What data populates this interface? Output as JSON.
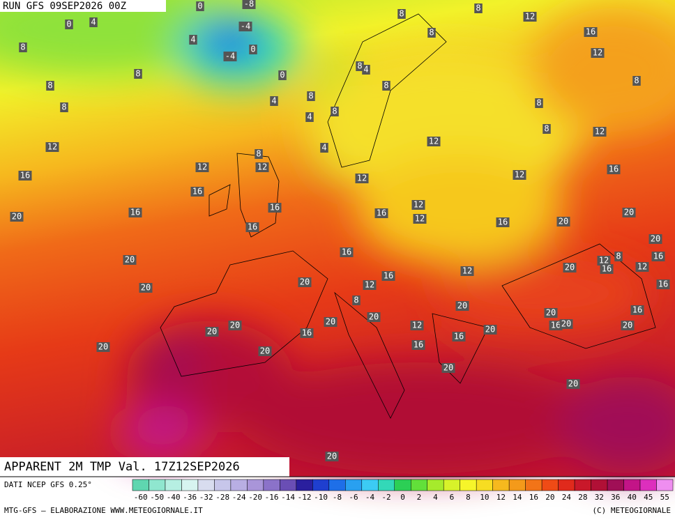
{
  "header": "RUN GFS 09SEP2026 00Z",
  "title": "APPARENT 2M TMP Val. 17Z12SEP2026",
  "source": "DATI NCEP GFS 0.25°",
  "credit_left": "MTG-GFS — ELABORAZIONE WWW.METEOGIORNALE.IT",
  "credit_right": "(C) METEOGIORNALE",
  "colorbar": {
    "labels": [
      "-60",
      "-50",
      "-40",
      "-36",
      "-32",
      "-28",
      "-24",
      "-20",
      "-16",
      "-14",
      "-12",
      "-10",
      "-8",
      "-6",
      "-4",
      "-2",
      "0",
      "2",
      "4",
      "6",
      "8",
      "10",
      "12",
      "14",
      "16",
      "20",
      "24",
      "28",
      "32",
      "36",
      "40",
      "45",
      "55"
    ],
    "colors": [
      "#5fd6b0",
      "#8fe6cf",
      "#b6efe2",
      "#d7f4f0",
      "#d8dcef",
      "#c7c6ea",
      "#b8aee3",
      "#a995d9",
      "#8b72c9",
      "#6a4eb5",
      "#2a1f9e",
      "#1f3fcf",
      "#1e6fe8",
      "#29a0f0",
      "#3ccbf4",
      "#33d8b8",
      "#2ccf55",
      "#62e03a",
      "#a6ea2c",
      "#d7f22a",
      "#f6f52a",
      "#f7dd22",
      "#f6b91e",
      "#f49a1a",
      "#f27418",
      "#ef4b16",
      "#e02a1c",
      "#c9182a",
      "#b11036",
      "#a00f56",
      "#c31487",
      "#dd2fbd",
      "#ef8ef0"
    ]
  },
  "map_labels": [
    "0",
    "-8",
    "0",
    "4",
    "-4",
    "4",
    "0",
    "-4",
    "8",
    "8",
    "0",
    "8",
    "4",
    "8",
    "8",
    "4",
    "8",
    "8",
    "4",
    "8",
    "8",
    "8",
    "12",
    "8",
    "16",
    "12",
    "8",
    "8",
    "8",
    "12",
    "4",
    "12",
    "8",
    "12",
    "12",
    "16",
    "12",
    "12",
    "16",
    "12",
    "16",
    "16",
    "16",
    "20",
    "16",
    "12",
    "12",
    "16",
    "20",
    "20",
    "20",
    "16",
    "16",
    "8",
    "12",
    "16",
    "16",
    "20",
    "20",
    "12",
    "12",
    "16",
    "12",
    "20",
    "16",
    "20",
    "8",
    "20",
    "20",
    "16",
    "20",
    "20",
    "12",
    "16",
    "20",
    "20",
    "20",
    "20",
    "16",
    "20",
    "16",
    "16",
    "20",
    "20",
    "20",
    "20",
    "20"
  ]
}
